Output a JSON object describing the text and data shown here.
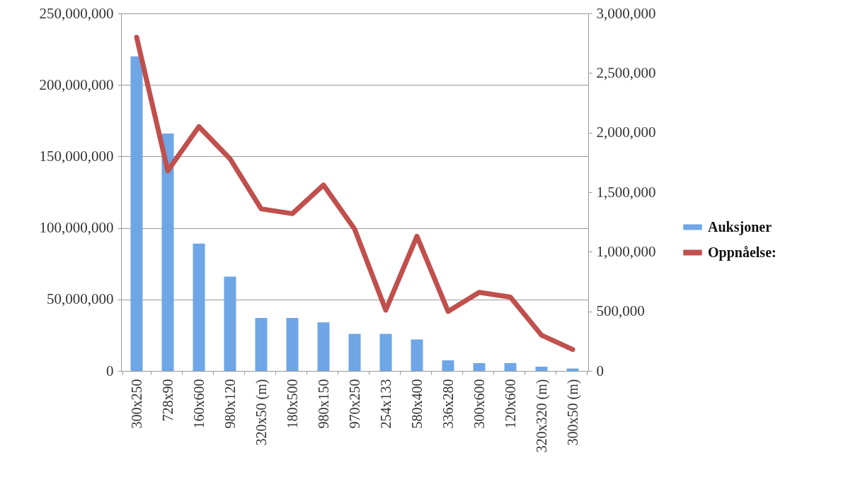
{
  "chart_data": {
    "type": "bar",
    "categories": [
      "300x250",
      "728x90",
      "160x600",
      "980x120",
      "320x50 (m)",
      "180x500",
      "980x150",
      "970x250",
      "254x133",
      "580x400",
      "336x280",
      "300x600",
      "120x600",
      "320x320 (m)",
      "300x50 (m)"
    ],
    "series": [
      {
        "name": "Auksjoner",
        "color": "#6fa6e6",
        "values": [
          220000000,
          166000000,
          89000000,
          66000000,
          37000000,
          37000000,
          34000000,
          26000000,
          26000000,
          22000000,
          7400000,
          5500000,
          5500000,
          3000000,
          1700000
        ]
      },
      {
        "name": "Oppnåelse:",
        "type": "line",
        "axis": "y2",
        "color": "#c0504d",
        "values": [
          2800000,
          1680000,
          2050000,
          1780000,
          1360000,
          1320000,
          1560000,
          1190000,
          510000,
          1130000,
          500000,
          660000,
          620000,
          300000,
          180000
        ]
      }
    ],
    "ylim": [
      0,
      250000000
    ],
    "yticks": [
      {
        "value": 0,
        "label": "0"
      },
      {
        "value": 50000000,
        "label": "50,000,000"
      },
      {
        "value": 100000000,
        "label": "100,000,000"
      },
      {
        "value": 150000000,
        "label": "150,000,000"
      },
      {
        "value": 200000000,
        "label": "200,000,000"
      },
      {
        "value": 250000000,
        "label": "250,000,000"
      }
    ],
    "y2lim": [
      0,
      3000000
    ],
    "y2ticks": [
      {
        "value": 0,
        "label": "0"
      },
      {
        "value": 500000,
        "label": "500,000"
      },
      {
        "value": 1000000,
        "label": "1,000,000"
      },
      {
        "value": 1500000,
        "label": "1,500,000"
      },
      {
        "value": 2000000,
        "label": "2,000,000"
      },
      {
        "value": 2500000,
        "label": "2,500,000"
      },
      {
        "value": 3000000,
        "label": "3,000,000"
      }
    ],
    "grid": "y",
    "legend": "right"
  }
}
